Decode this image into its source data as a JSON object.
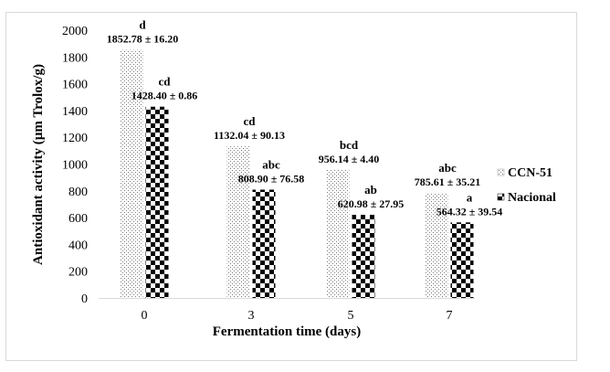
{
  "chart_data": {
    "type": "bar",
    "title": "",
    "xlabel": "Fermentation time (days)",
    "ylabel": "Antioxidant activity (µm Trolox/g)",
    "categories": [
      "0",
      "3",
      "5",
      "7"
    ],
    "ylim": [
      0,
      2000
    ],
    "yticks": [
      0,
      200,
      400,
      600,
      800,
      1000,
      1200,
      1400,
      1600,
      1800,
      2000
    ],
    "grid": false,
    "legend_position": "right",
    "series": [
      {
        "name": "CCN-51",
        "pattern": "dotted",
        "values": [
          1852.78,
          1132.04,
          956.14,
          785.61
        ],
        "errors": [
          16.2,
          90.13,
          4.4,
          35.21
        ],
        "labels": [
          "1852.78 ± 16.20",
          "1132.04 ± 90.13",
          "956.14 ± 4.40",
          "785.61 ± 35.21"
        ],
        "letters": [
          "d",
          "cd",
          "bcd",
          "abc"
        ]
      },
      {
        "name": "Nacional",
        "pattern": "checkerboard",
        "values": [
          1428.4,
          808.9,
          620.98,
          564.32
        ],
        "errors": [
          0.86,
          76.58,
          27.95,
          39.54
        ],
        "labels": [
          "1428.40 ± 0.86",
          "808.90 ± 76.58",
          "620.98 ± 27.95",
          "564.32 ± 39.54"
        ],
        "letters": [
          "cd",
          "abc",
          "ab",
          "a"
        ]
      }
    ]
  }
}
